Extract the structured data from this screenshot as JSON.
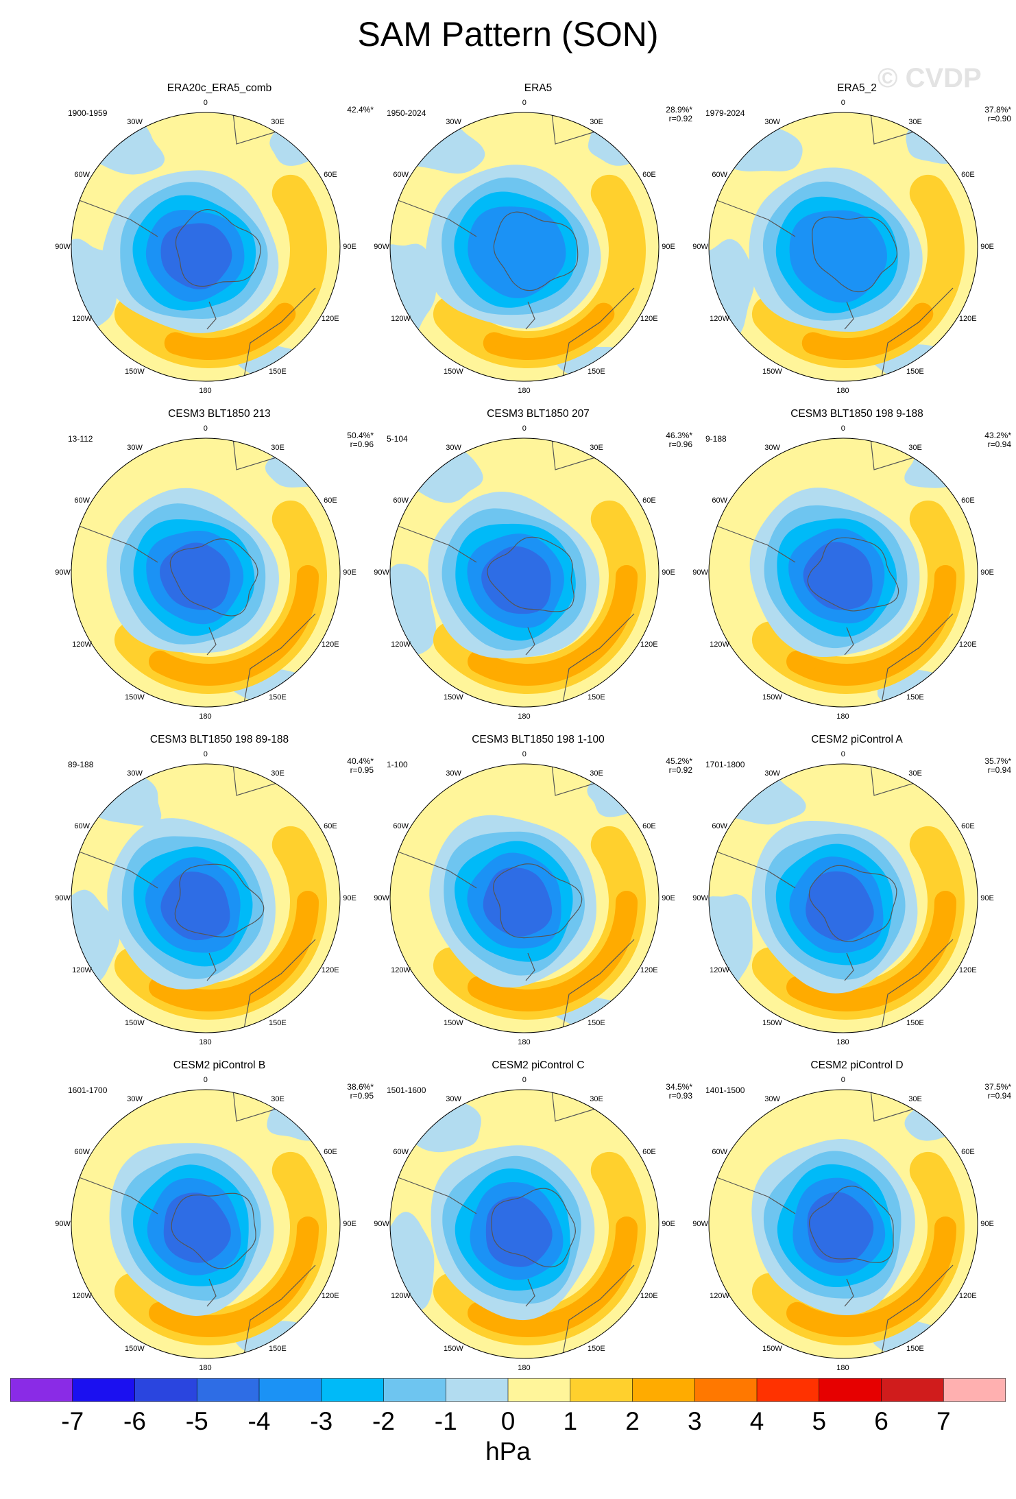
{
  "title": "SAM Pattern (SON)",
  "watermark": "© CVDP",
  "chart_data": {
    "type": "heatmap",
    "title": "SAM Pattern (SON)",
    "projection": "South polar stereographic",
    "units": "hPa",
    "levels": [
      -7,
      -6,
      -5,
      -4,
      -3,
      -2,
      -1,
      0,
      1,
      2,
      3,
      4,
      5,
      6,
      7
    ],
    "colors": [
      "#8a2be6",
      "#1b10f0",
      "#2a45df",
      "#2e6de5",
      "#1b92f5",
      "#00baf8",
      "#6ec5f0",
      "#b2dcf0",
      "#fff59a",
      "#ffd02d",
      "#ffab00",
      "#ff7800",
      "#ff3200",
      "#e60000",
      "#d01c1c",
      "#ffb0b0"
    ],
    "lon_labels": [
      "0",
      "30E",
      "60E",
      "90E",
      "120E",
      "150E",
      "180",
      "150W",
      "120W",
      "90W",
      "60W",
      "30W"
    ],
    "panels": [
      {
        "name": "ERA20c_ERA5_comb",
        "years": "1900-1959",
        "pct": "42.4%*",
        "r": ""
      },
      {
        "name": "ERA5",
        "years": "1950-2024",
        "pct": "28.9%*",
        "r": "r=0.92"
      },
      {
        "name": "ERA5_2",
        "years": "1979-2024",
        "pct": "37.8%*",
        "r": "r=0.90"
      },
      {
        "name": "CESM3 BLT1850 213",
        "years": "13-112",
        "pct": "50.4%*",
        "r": "r=0.96"
      },
      {
        "name": "CESM3 BLT1850 207",
        "years": "5-104",
        "pct": "46.3%*",
        "r": "r=0.96"
      },
      {
        "name": "CESM3 BLT1850 198 9-188",
        "years": "9-188",
        "pct": "43.2%*",
        "r": "r=0.94"
      },
      {
        "name": "CESM3 BLT1850 198 89-188",
        "years": "89-188",
        "pct": "40.4%*",
        "r": "r=0.95"
      },
      {
        "name": "CESM3 BLT1850 198 1-100",
        "years": "1-100",
        "pct": "45.2%*",
        "r": "r=0.92"
      },
      {
        "name": "CESM2 piControl A",
        "years": "1701-1800",
        "pct": "35.7%*",
        "r": "r=0.94"
      },
      {
        "name": "CESM2 piControl B",
        "years": "1601-1700",
        "pct": "38.6%*",
        "r": "r=0.95"
      },
      {
        "name": "CESM2 piControl C",
        "years": "1501-1600",
        "pct": "34.5%*",
        "r": "r=0.93"
      },
      {
        "name": "CESM2 piControl D",
        "years": "1401-1500",
        "pct": "37.5%*",
        "r": "r=0.94"
      }
    ]
  }
}
